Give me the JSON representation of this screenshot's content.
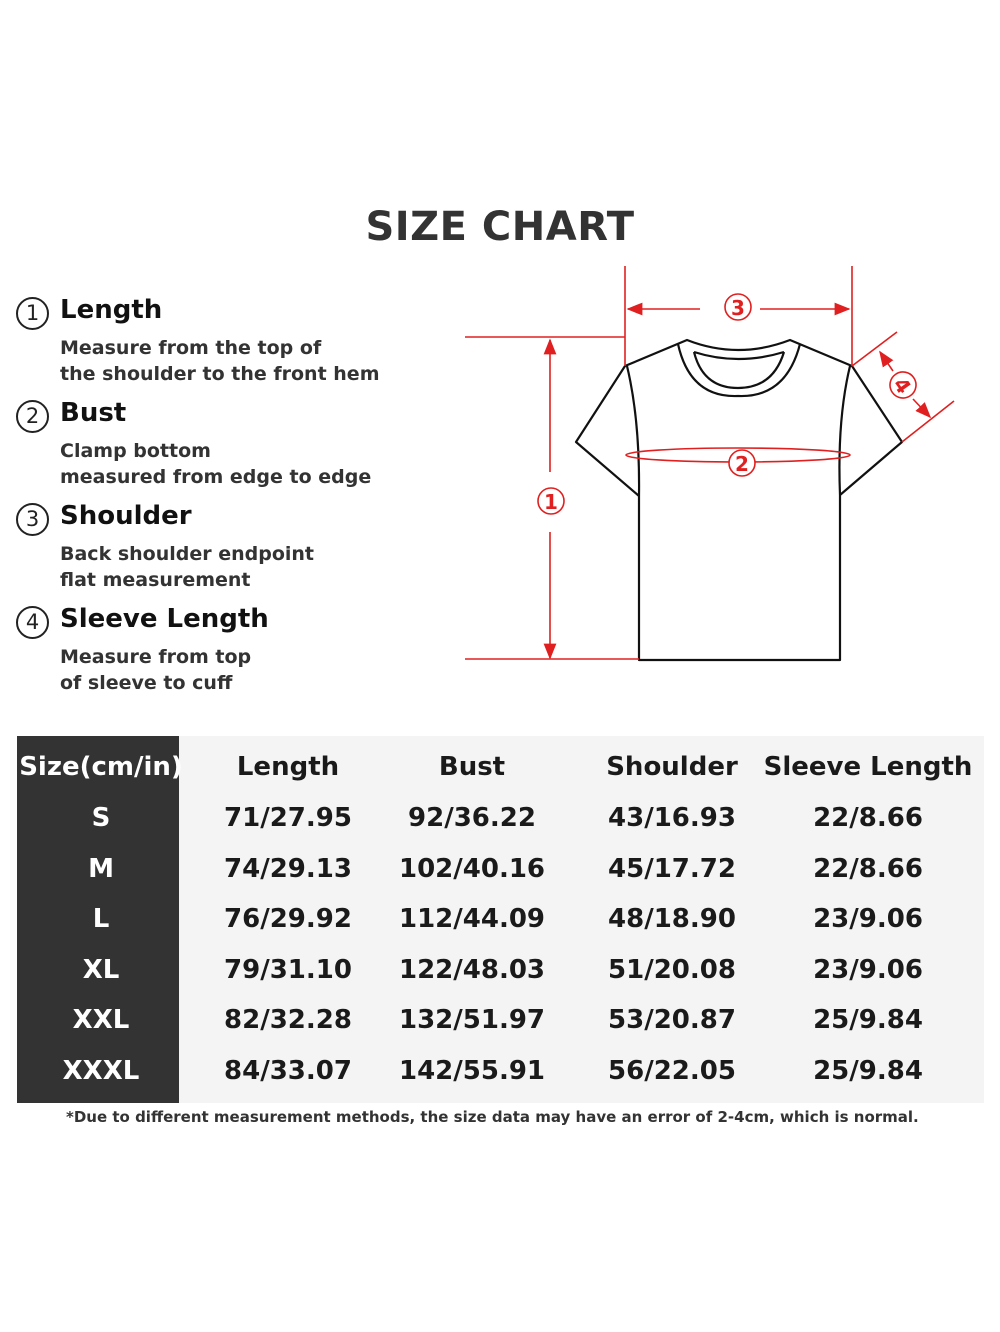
{
  "title": "SIZE CHART",
  "colors": {
    "accent_red": "#e02020",
    "table_dark": "#333333",
    "table_bg": "#f4f4f4"
  },
  "measurements": [
    {
      "num": "1",
      "label": "Length",
      "desc": "Measure from the top of\nthe shoulder to the front hem"
    },
    {
      "num": "2",
      "label": "Bust",
      "desc": "Clamp bottom\nmeasured from edge to edge"
    },
    {
      "num": "3",
      "label": "Shoulder",
      "desc": "Back shoulder endpoint\nflat measurement"
    },
    {
      "num": "4",
      "label": "Sleeve Length",
      "desc": "Measure from top\nof sleeve to cuff"
    }
  ],
  "diagram": {
    "markers": [
      "1",
      "2",
      "3",
      "4"
    ]
  },
  "table": {
    "headers": [
      "Size(cm/in)",
      "Length",
      "Bust",
      "Shoulder",
      "Sleeve Length"
    ],
    "rows": [
      [
        "S",
        "71/27.95",
        "92/36.22",
        "43/16.93",
        "22/8.66"
      ],
      [
        "M",
        "74/29.13",
        "102/40.16",
        "45/17.72",
        "22/8.66"
      ],
      [
        "L",
        "76/29.92",
        "112/44.09",
        "48/18.90",
        "23/9.06"
      ],
      [
        "XL",
        "79/31.10",
        "122/48.03",
        "51/20.08",
        "23/9.06"
      ],
      [
        "XXL",
        "82/32.28",
        "132/51.97",
        "53/20.87",
        "25/9.84"
      ],
      [
        "XXXL",
        "84/33.07",
        "142/55.91",
        "56/22.05",
        "25/9.84"
      ]
    ]
  },
  "note": "*Due to different measurement methods, the size data may have an error of 2-4cm, which is normal."
}
